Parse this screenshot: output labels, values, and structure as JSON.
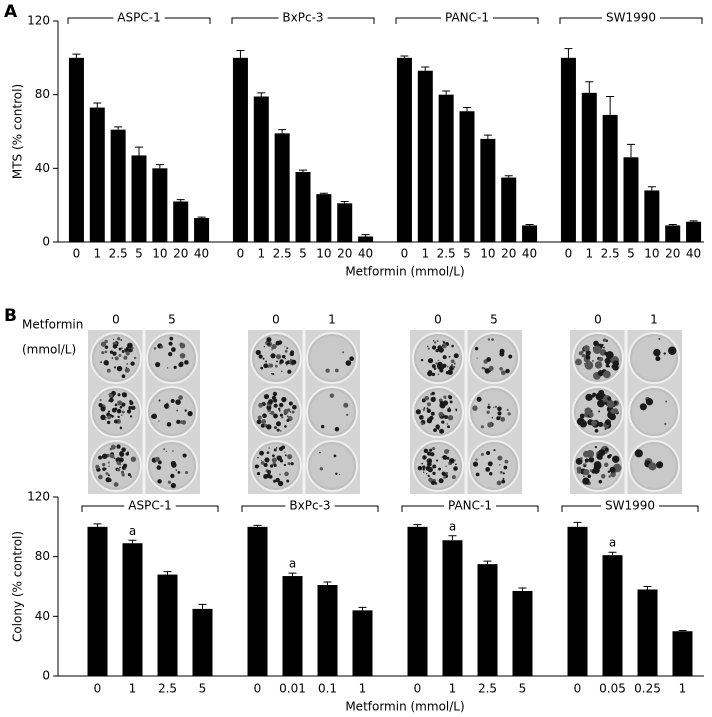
{
  "chart_data": [
    {
      "type": "bar",
      "panel": "A",
      "y_label": "MTS (% control)",
      "x_label": "Metformin (mmol/L)",
      "ylim": [
        0,
        120
      ],
      "yticks": [
        0,
        40,
        80,
        120
      ],
      "color": "#000000",
      "groups": [
        {
          "name": "ASPC-1",
          "categories": [
            "0",
            "1",
            "2.5",
            "5",
            "10",
            "20",
            "40"
          ],
          "values": [
            100,
            73,
            61,
            47,
            40,
            22,
            13
          ],
          "errors": [
            2,
            2.5,
            1.5,
            4.5,
            2,
            1,
            0.5
          ]
        },
        {
          "name": "BxPc-3",
          "categories": [
            "0",
            "1",
            "2.5",
            "5",
            "10",
            "20",
            "40"
          ],
          "values": [
            100,
            79,
            59,
            38,
            26,
            21,
            3
          ],
          "errors": [
            4,
            2,
            2,
            1,
            0.5,
            1,
            1
          ]
        },
        {
          "name": "PANC-1",
          "categories": [
            "0",
            "1",
            "2.5",
            "5",
            "10",
            "20",
            "40"
          ],
          "values": [
            100,
            93,
            80,
            71,
            56,
            35,
            9
          ],
          "errors": [
            1,
            2,
            2,
            2,
            2,
            1,
            0.5
          ]
        },
        {
          "name": "SW1990",
          "categories": [
            "0",
            "1",
            "2.5",
            "5",
            "10",
            "20",
            "40"
          ],
          "values": [
            100,
            81,
            69,
            46,
            28,
            9,
            11
          ],
          "errors": [
            5,
            6,
            10,
            7,
            2,
            0.5,
            0.5
          ]
        }
      ]
    },
    {
      "type": "bar",
      "panel": "B",
      "y_label": "Colony (% control)",
      "x_label": "Metformin (mmol/L)",
      "ylim": [
        0,
        120
      ],
      "yticks": [
        0,
        40,
        80,
        120
      ],
      "color": "#000000",
      "groups": [
        {
          "name": "ASPC-1",
          "categories": [
            "0",
            "1",
            "2.5",
            "5"
          ],
          "values": [
            100,
            89,
            68,
            45
          ],
          "errors": [
            2,
            2,
            2,
            3
          ],
          "labels": [
            null,
            "a",
            null,
            null
          ]
        },
        {
          "name": "BxPc-3",
          "categories": [
            "0",
            "0.01",
            "0.1",
            "1"
          ],
          "values": [
            100,
            67,
            61,
            44
          ],
          "errors": [
            1,
            2,
            2,
            2
          ],
          "labels": [
            null,
            "a",
            null,
            null
          ]
        },
        {
          "name": "PANC-1",
          "categories": [
            "0",
            "1",
            "2.5",
            "5"
          ],
          "values": [
            100,
            91,
            75,
            57
          ],
          "errors": [
            1.5,
            3,
            2,
            2
          ],
          "labels": [
            null,
            "a",
            null,
            null
          ]
        },
        {
          "name": "SW1990",
          "categories": [
            "0",
            "0.05",
            "0.25",
            "1"
          ],
          "values": [
            100,
            81,
            58,
            30
          ],
          "errors": [
            3,
            2,
            2,
            0.5
          ],
          "labels": [
            null,
            "a",
            null,
            null
          ]
        }
      ]
    }
  ],
  "colony_images": {
    "label": [
      "Metformin",
      "(mmol/L)"
    ],
    "doses": [
      [
        "0",
        "5"
      ],
      [
        "0",
        "1"
      ],
      [
        "0",
        "5"
      ],
      [
        "0",
        "1"
      ]
    ]
  }
}
